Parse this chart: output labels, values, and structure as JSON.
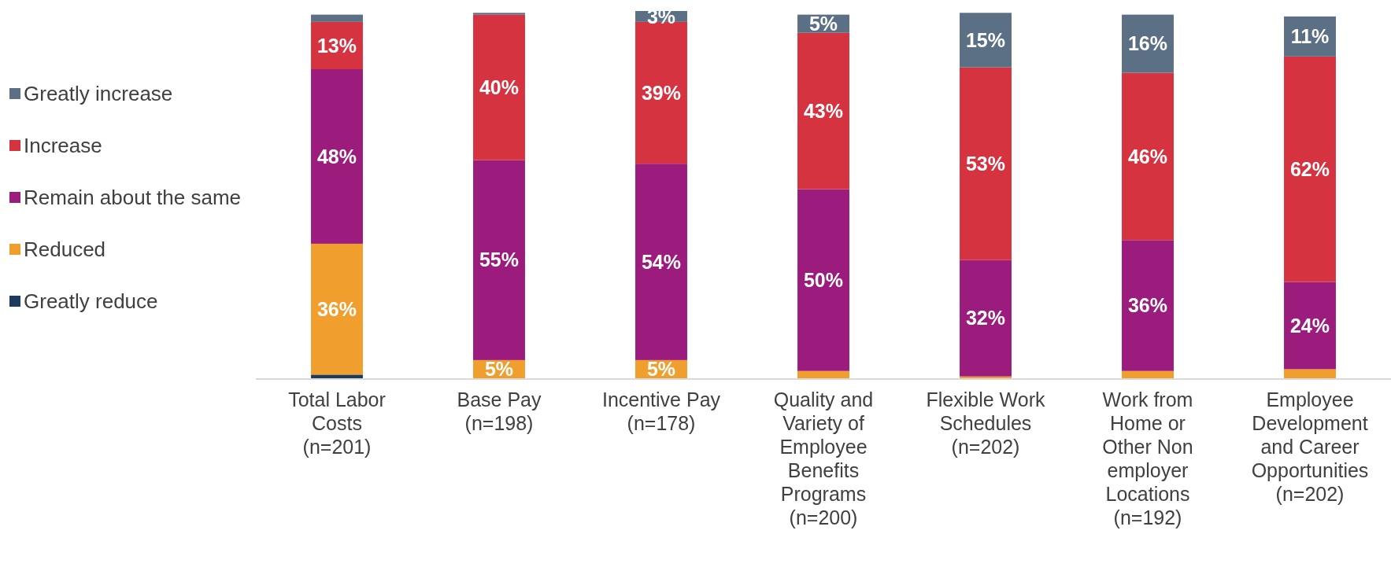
{
  "chart_data": {
    "type": "bar",
    "stacked": true,
    "legend": "left",
    "ylim": [
      0,
      101
    ],
    "tick_labels": "x",
    "categories": [
      "Total Labor\nCosts\n(n=201)",
      "Base Pay\n(n=198)",
      "Incentive Pay\n(n=178)",
      "Quality and\nVariety of\nEmployee\nBenefits\nPrograms\n(n=200)",
      "Flexible Work\nSchedules\n(n=202)",
      "Work from\nHome or\nOther Non\nemployer\nLocations\n(n=192)",
      "Employee\nDevelopment\nand Career\nOpportunities\n(n=202)"
    ],
    "series": [
      {
        "name": "Greatly reduce",
        "color": "#1f3b5c",
        "values": [
          1,
          0,
          0,
          0,
          0,
          0,
          0
        ],
        "value_labels": [
          null,
          null,
          null,
          null,
          null,
          null,
          null
        ]
      },
      {
        "name": "Reduced",
        "color": "#f09e2e",
        "values": [
          36,
          5,
          5,
          2,
          0.5,
          2,
          2.5
        ],
        "value_labels": [
          "36%",
          "5%",
          "5%",
          null,
          null,
          null,
          null
        ]
      },
      {
        "name": "Remain about the same",
        "color": "#9b1c7c",
        "values": [
          48,
          55,
          54,
          50,
          32,
          36,
          24
        ],
        "value_labels": [
          "48%",
          "55%",
          "54%",
          "50%",
          "32%",
          "36%",
          "24%"
        ]
      },
      {
        "name": "Increase",
        "color": "#d63340",
        "values": [
          13,
          40,
          39,
          43,
          53,
          46,
          62
        ],
        "value_labels": [
          "13%",
          "40%",
          "39%",
          "43%",
          "53%",
          "46%",
          "62%"
        ]
      },
      {
        "name": "Greatly increase",
        "color": "#5b6f85",
        "values": [
          2,
          0.5,
          3,
          5,
          15,
          16,
          11
        ],
        "value_labels": [
          null,
          null,
          "3%",
          "5%",
          "15%",
          "16%",
          "11%"
        ]
      }
    ]
  }
}
